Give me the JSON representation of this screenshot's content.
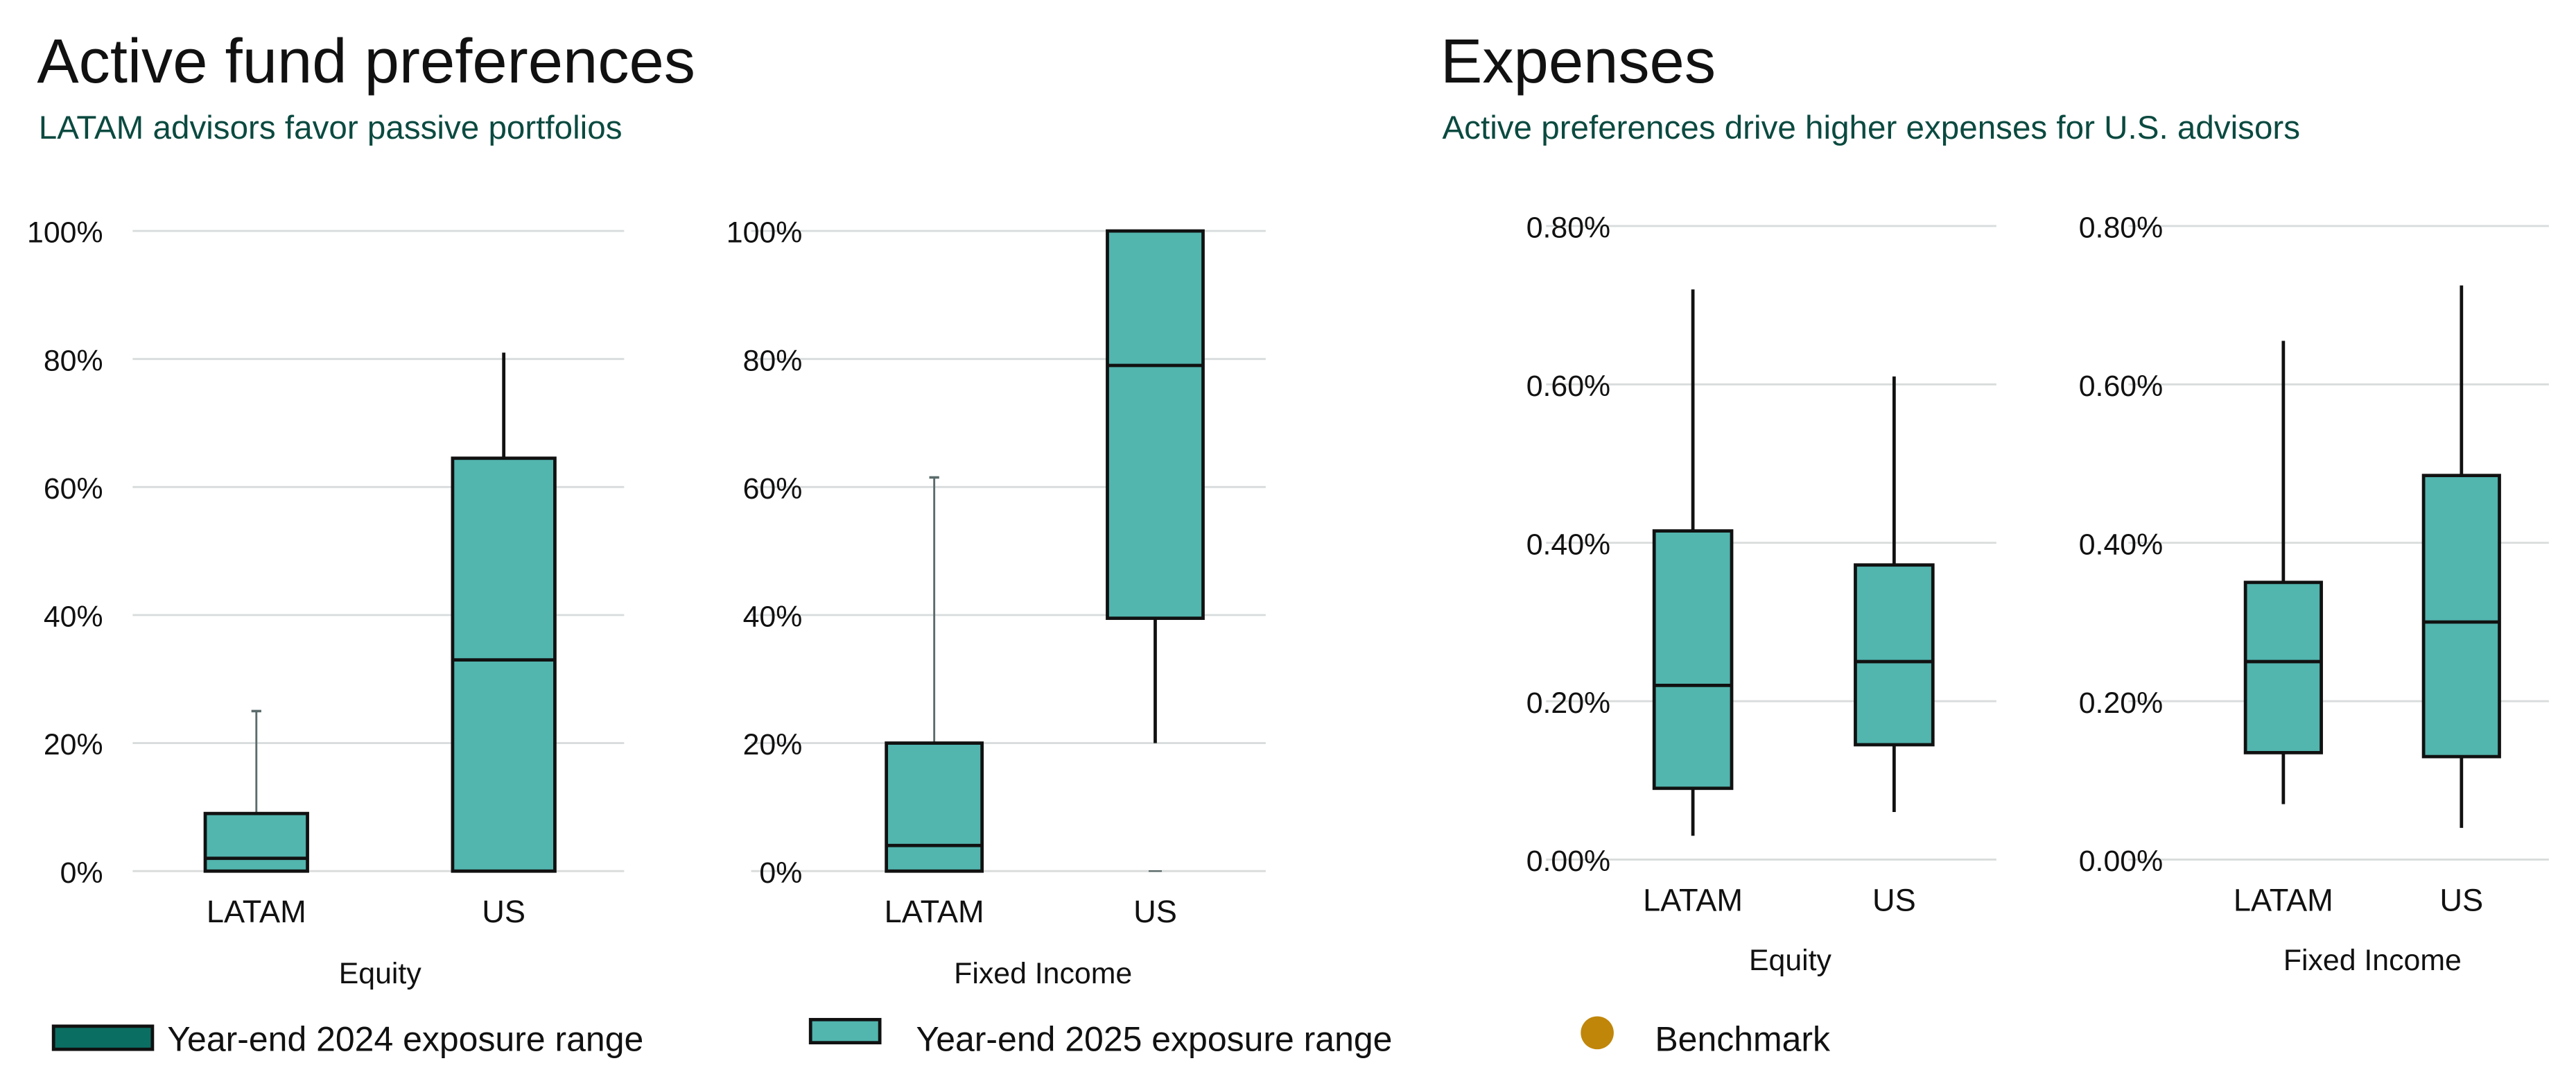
{
  "panels": [
    {
      "title": "Active fund preferences",
      "subtitle": "LATAM advisors favor passive portfolios"
    },
    {
      "title": "Expenses",
      "subtitle": "Active preferences drive higher expenses for U.S. advisors"
    }
  ],
  "colors": {
    "year_2024": "#0b6e63",
    "year_2025": "#52b5ae",
    "benchmark": "#c0860a",
    "grid": "#d9dcdc"
  },
  "legend": [
    {
      "label": "Year-end 2024 exposure range",
      "color": "#0b6e63",
      "shape": "square"
    },
    {
      "label": "Year-end 2025 exposure range",
      "color": "#52b5ae",
      "shape": "square"
    },
    {
      "label": "Benchmark",
      "color": "#c0860a",
      "shape": "circle"
    }
  ],
  "chart_data": [
    {
      "type": "boxplot",
      "panel": "Active fund preferences",
      "xlabel": "Equity",
      "categories": [
        "LATAM",
        "US"
      ],
      "ylim": [
        0,
        100
      ],
      "yticks": [
        "0%",
        "20%",
        "40%",
        "60%",
        "80%",
        "100%"
      ],
      "grid": true,
      "boxes": [
        {
          "category": "LATAM",
          "min": 0,
          "q1": 0,
          "median": 2,
          "q3": 9,
          "max": 25
        },
        {
          "category": "US",
          "min": 0,
          "q1": 0,
          "median": 33,
          "q3": 64.5,
          "max": 81
        }
      ]
    },
    {
      "type": "boxplot",
      "panel": "Active fund preferences",
      "xlabel": "Fixed Income",
      "categories": [
        "LATAM",
        "US"
      ],
      "ylim": [
        0,
        100
      ],
      "yticks": [
        "0%",
        "20%",
        "40%",
        "60%",
        "80%",
        "100%"
      ],
      "grid": true,
      "boxes": [
        {
          "category": "LATAM",
          "min": 0,
          "q1": 0,
          "median": 4,
          "q3": 20,
          "max": 61.5
        },
        {
          "category": "US",
          "min": 20,
          "q1": 39.5,
          "median": 79,
          "q3": 100,
          "max": 100,
          "outliers": [
            0
          ]
        }
      ]
    },
    {
      "type": "boxplot",
      "panel": "Expenses",
      "xlabel": "Equity",
      "categories": [
        "LATAM",
        "US"
      ],
      "ylim": [
        0,
        0.8
      ],
      "yticks": [
        "0.00%",
        "0.20%",
        "0.40%",
        "0.60%",
        "0.80%"
      ],
      "grid": true,
      "boxes": [
        {
          "category": "LATAM",
          "min": 0.03,
          "q1": 0.09,
          "median": 0.22,
          "q3": 0.415,
          "max": 0.72
        },
        {
          "category": "US",
          "min": 0.06,
          "q1": 0.145,
          "median": 0.25,
          "q3": 0.372,
          "max": 0.61
        }
      ]
    },
    {
      "type": "boxplot",
      "panel": "Expenses",
      "xlabel": "Fixed Income",
      "categories": [
        "LATAM",
        "US"
      ],
      "ylim": [
        0,
        0.8
      ],
      "yticks": [
        "0.00%",
        "0.20%",
        "0.40%",
        "0.60%",
        "0.80%"
      ],
      "grid": true,
      "boxes": [
        {
          "category": "LATAM",
          "min": 0.07,
          "q1": 0.135,
          "median": 0.25,
          "q3": 0.35,
          "max": 0.655
        },
        {
          "category": "US",
          "min": 0.04,
          "q1": 0.13,
          "median": 0.3,
          "q3": 0.485,
          "max": 0.725
        }
      ]
    }
  ]
}
